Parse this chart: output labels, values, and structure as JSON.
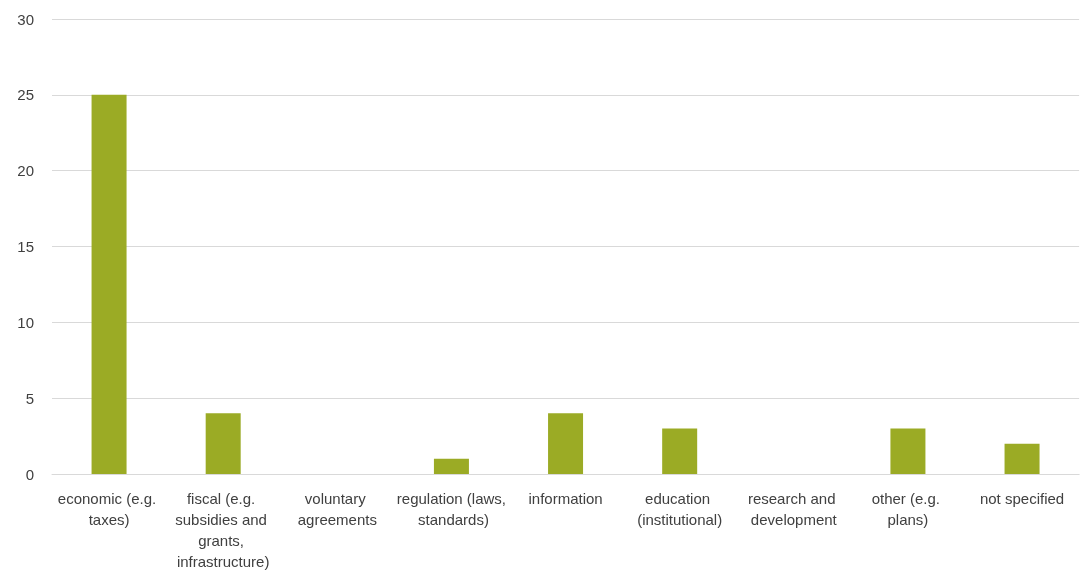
{
  "chart_data": {
    "type": "bar",
    "categories": [
      "economic (e.g. taxes)",
      "fiscal (e.g. subsidies and grants, infrastructure)",
      "voluntary agreements",
      "regulation (laws, standards)",
      "information",
      "education (institutional)",
      "research and development",
      "other (e.g. plans)",
      "not specified"
    ],
    "series": [
      {
        "color": "#9bab25",
        "values": [
          25,
          4,
          0,
          1,
          4,
          3,
          0,
          3,
          2
        ]
      }
    ],
    "ylim": [
      0,
      30
    ],
    "yticks": [
      0,
      5,
      10,
      15,
      20,
      25,
      30
    ],
    "grid": "y"
  }
}
